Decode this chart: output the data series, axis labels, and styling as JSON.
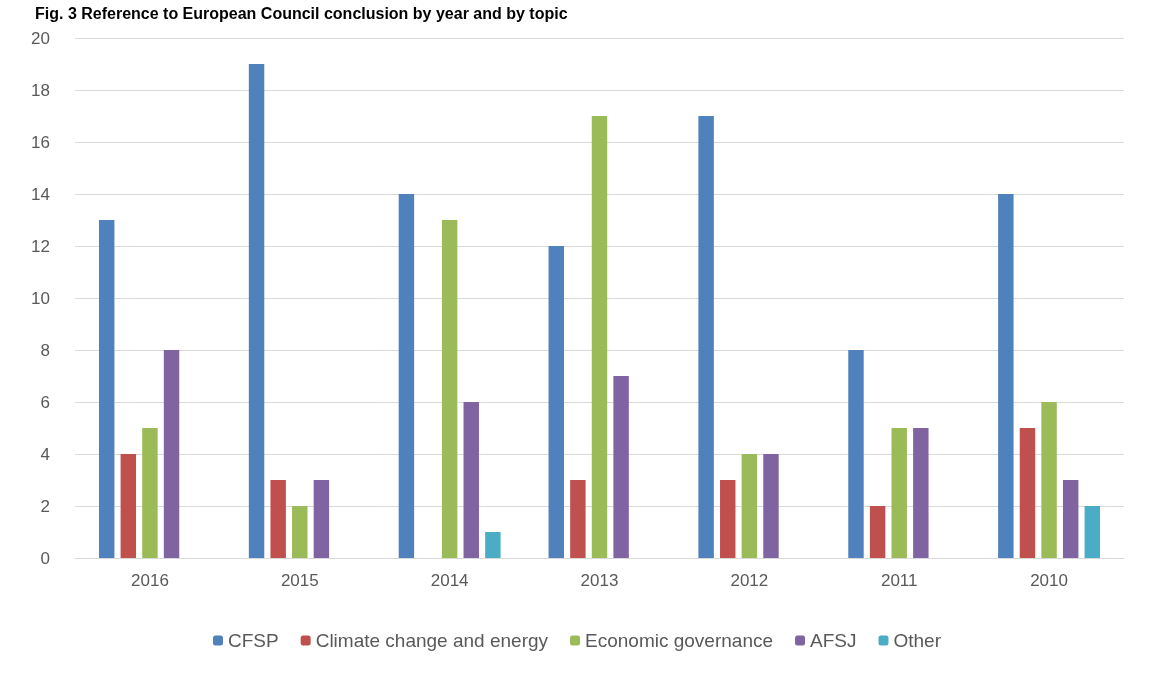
{
  "chart_data": {
    "type": "bar",
    "title": "Fig. 3 Reference to European Council conclusion by year and by topic",
    "categories": [
      "2016",
      "2015",
      "2014",
      "2013",
      "2012",
      "2011",
      "2010"
    ],
    "series": [
      {
        "name": "CFSP",
        "color": "#4f81bd",
        "values": [
          13,
          19,
          14,
          12,
          17,
          8,
          14
        ]
      },
      {
        "name": "Climate change and energy",
        "color": "#c0504d",
        "values": [
          4,
          3,
          null,
          3,
          3,
          2,
          5
        ]
      },
      {
        "name": "Economic governance",
        "color": "#9bbb59",
        "values": [
          5,
          2,
          13,
          17,
          4,
          5,
          6
        ]
      },
      {
        "name": "AFSJ",
        "color": "#8064a2",
        "values": [
          8,
          3,
          6,
          7,
          4,
          5,
          3
        ]
      },
      {
        "name": "Other",
        "color": "#4bacc6",
        "values": [
          null,
          null,
          1,
          null,
          null,
          null,
          2
        ]
      }
    ],
    "ylim": [
      0,
      20
    ],
    "yticks": [
      0,
      2,
      4,
      6,
      8,
      10,
      12,
      14,
      16,
      18,
      20
    ],
    "grid": "y",
    "legend": "bottom"
  }
}
